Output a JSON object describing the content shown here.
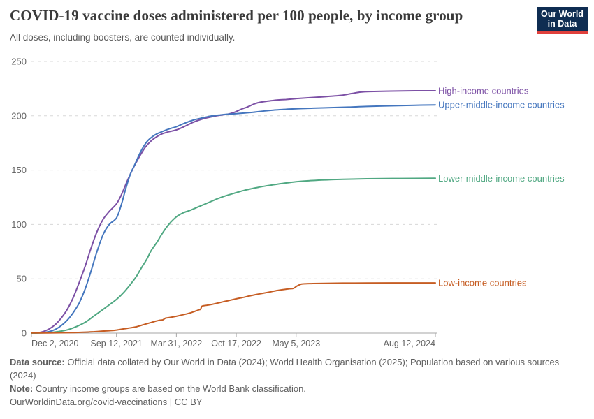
{
  "header": {
    "title": "COVID-19 vaccine doses administered per 100 people, by income group",
    "subtitle": "All doses, including boosters, are counted individually.",
    "logo": {
      "line1": "Our World",
      "line2": "in Data",
      "bg": "#0f2d52",
      "accent": "#e0403c"
    }
  },
  "chart_data": {
    "type": "line",
    "title": "COVID-19 vaccine doses administered per 100 people, by income group",
    "subtitle": "All doses, including boosters, are counted individually.",
    "xlabel": "",
    "ylabel": "",
    "grid": "dashed horizontal",
    "legend_position": "right of line ends",
    "x_unit": "days since Dec 2, 2020",
    "x_axis": {
      "tick_labels": [
        "Dec 2, 2020",
        "Sep 12, 2021",
        "Mar 31, 2022",
        "Oct 17, 2022",
        "May 5, 2023",
        "Aug 12, 2024"
      ],
      "tick_days": [
        0,
        284,
        484,
        684,
        884,
        1349
      ]
    },
    "y_axis": {
      "ticks": [
        0,
        50,
        100,
        150,
        200,
        250
      ],
      "range": [
        0,
        250
      ]
    },
    "series": [
      {
        "name": "High-income countries",
        "color": "#7c50a5",
        "points": [
          [
            0,
            0
          ],
          [
            20,
            0.3
          ],
          [
            40,
            1.5
          ],
          [
            60,
            4
          ],
          [
            80,
            8
          ],
          [
            100,
            14
          ],
          [
            120,
            22
          ],
          [
            140,
            33
          ],
          [
            160,
            47
          ],
          [
            180,
            62
          ],
          [
            200,
            79
          ],
          [
            220,
            94
          ],
          [
            240,
            105
          ],
          [
            260,
            112
          ],
          [
            284,
            119
          ],
          [
            300,
            127
          ],
          [
            320,
            140
          ],
          [
            340,
            152
          ],
          [
            360,
            162
          ],
          [
            380,
            171
          ],
          [
            400,
            177
          ],
          [
            420,
            181
          ],
          [
            433,
            183
          ],
          [
            455,
            185
          ],
          [
            484,
            187
          ],
          [
            510,
            190
          ],
          [
            540,
            194
          ],
          [
            570,
            197
          ],
          [
            600,
            199
          ],
          [
            630,
            200.5
          ],
          [
            656,
            201.5
          ],
          [
            680,
            203.5
          ],
          [
            700,
            206
          ],
          [
            720,
            208
          ],
          [
            745,
            211
          ],
          [
            764,
            212.5
          ],
          [
            790,
            213.5
          ],
          [
            820,
            214.5
          ],
          [
            850,
            215
          ],
          [
            884,
            215.8
          ],
          [
            920,
            216.5
          ],
          [
            960,
            217.2
          ],
          [
            1000,
            218
          ],
          [
            1040,
            219
          ],
          [
            1070,
            220.5
          ],
          [
            1100,
            221.8
          ],
          [
            1130,
            222.3
          ],
          [
            1200,
            222.7
          ],
          [
            1280,
            223
          ],
          [
            1349,
            223
          ]
        ]
      },
      {
        "name": "Upper-middle-income countries",
        "color": "#4476be",
        "points": [
          [
            0,
            0
          ],
          [
            30,
            0.3
          ],
          [
            60,
            1.5
          ],
          [
            80,
            3.5
          ],
          [
            100,
            7
          ],
          [
            120,
            12
          ],
          [
            140,
            19
          ],
          [
            160,
            28
          ],
          [
            180,
            41
          ],
          [
            200,
            58
          ],
          [
            220,
            76
          ],
          [
            240,
            91
          ],
          [
            260,
            100
          ],
          [
            284,
            106
          ],
          [
            300,
            118
          ],
          [
            315,
            133
          ],
          [
            330,
            146
          ],
          [
            345,
            155
          ],
          [
            365,
            167
          ],
          [
            385,
            176
          ],
          [
            405,
            181
          ],
          [
            420,
            183.5
          ],
          [
            433,
            185
          ],
          [
            455,
            187.5
          ],
          [
            484,
            190
          ],
          [
            510,
            193
          ],
          [
            540,
            196
          ],
          [
            570,
            198
          ],
          [
            600,
            199.8
          ],
          [
            630,
            200.8
          ],
          [
            656,
            201.5
          ],
          [
            684,
            202
          ],
          [
            710,
            202.5
          ],
          [
            740,
            203.2
          ],
          [
            764,
            204
          ],
          [
            800,
            205
          ],
          [
            850,
            206
          ],
          [
            884,
            206.5
          ],
          [
            940,
            207
          ],
          [
            1000,
            207.5
          ],
          [
            1060,
            208
          ],
          [
            1120,
            208.6
          ],
          [
            1200,
            209.2
          ],
          [
            1280,
            209.7
          ],
          [
            1349,
            210
          ]
        ]
      },
      {
        "name": "Lower-middle-income countries",
        "color": "#50a882",
        "points": [
          [
            0,
            0
          ],
          [
            60,
            0.5
          ],
          [
            90,
            1.5
          ],
          [
            120,
            3
          ],
          [
            150,
            6
          ],
          [
            180,
            10
          ],
          [
            210,
            16
          ],
          [
            240,
            22
          ],
          [
            260,
            26
          ],
          [
            284,
            31
          ],
          [
            310,
            38
          ],
          [
            334,
            46
          ],
          [
            350,
            52
          ],
          [
            365,
            59
          ],
          [
            385,
            68
          ],
          [
            400,
            76
          ],
          [
            420,
            84
          ],
          [
            433,
            90
          ],
          [
            450,
            97
          ],
          [
            465,
            102
          ],
          [
            484,
            107
          ],
          [
            505,
            110.5
          ],
          [
            530,
            113
          ],
          [
            560,
            116.5
          ],
          [
            590,
            120
          ],
          [
            620,
            123.5
          ],
          [
            650,
            126.5
          ],
          [
            684,
            129.3
          ],
          [
            710,
            131.3
          ],
          [
            740,
            133.2
          ],
          [
            764,
            134.5
          ],
          [
            800,
            136.2
          ],
          [
            840,
            137.8
          ],
          [
            884,
            139.3
          ],
          [
            930,
            140.3
          ],
          [
            980,
            141
          ],
          [
            1040,
            141.6
          ],
          [
            1120,
            142
          ],
          [
            1230,
            142.3
          ],
          [
            1349,
            142.5
          ]
        ]
      },
      {
        "name": "Low-income countries",
        "color": "#c65d23",
        "points": [
          [
            0,
            0.1
          ],
          [
            100,
            0.3
          ],
          [
            150,
            0.6
          ],
          [
            180,
            0.9
          ],
          [
            210,
            1.3
          ],
          [
            240,
            1.9
          ],
          [
            265,
            2.3
          ],
          [
            284,
            2.8
          ],
          [
            310,
            4
          ],
          [
            334,
            5
          ],
          [
            350,
            5.8
          ],
          [
            365,
            7
          ],
          [
            385,
            8.6
          ],
          [
            400,
            9.8
          ],
          [
            415,
            11
          ],
          [
            428,
            11.8
          ],
          [
            439,
            12.3
          ],
          [
            448,
            13.8
          ],
          [
            460,
            14.3
          ],
          [
            484,
            15.5
          ],
          [
            500,
            16.5
          ],
          [
            515,
            17.5
          ],
          [
            530,
            18.5
          ],
          [
            545,
            20
          ],
          [
            560,
            21.5
          ],
          [
            565,
            22
          ],
          [
            570,
            24.8
          ],
          [
            585,
            25.6
          ],
          [
            600,
            26.3
          ],
          [
            620,
            27.5
          ],
          [
            640,
            28.8
          ],
          [
            660,
            30
          ],
          [
            688,
            31.8
          ],
          [
            710,
            33
          ],
          [
            730,
            34.3
          ],
          [
            764,
            36.2
          ],
          [
            790,
            37.5
          ],
          [
            815,
            38.9
          ],
          [
            840,
            40
          ],
          [
            862,
            40.8
          ],
          [
            875,
            41.2
          ],
          [
            888,
            43.5
          ],
          [
            900,
            45
          ],
          [
            915,
            45.4
          ],
          [
            940,
            45.6
          ],
          [
            980,
            45.8
          ],
          [
            1040,
            46
          ],
          [
            1120,
            46.1
          ],
          [
            1230,
            46.2
          ],
          [
            1349,
            46.2
          ]
        ]
      }
    ]
  },
  "footer": {
    "source_label": "Data source:",
    "source_text": " Official data collated by Our World in Data (2024); World Health Organisation (2025); Population based on various sources (2024)",
    "note_label": "Note:",
    "note_text": " Country income groups are based on the World Bank classification.",
    "link_text": "OurWorldinData.org/covid-vaccinations | CC BY"
  }
}
